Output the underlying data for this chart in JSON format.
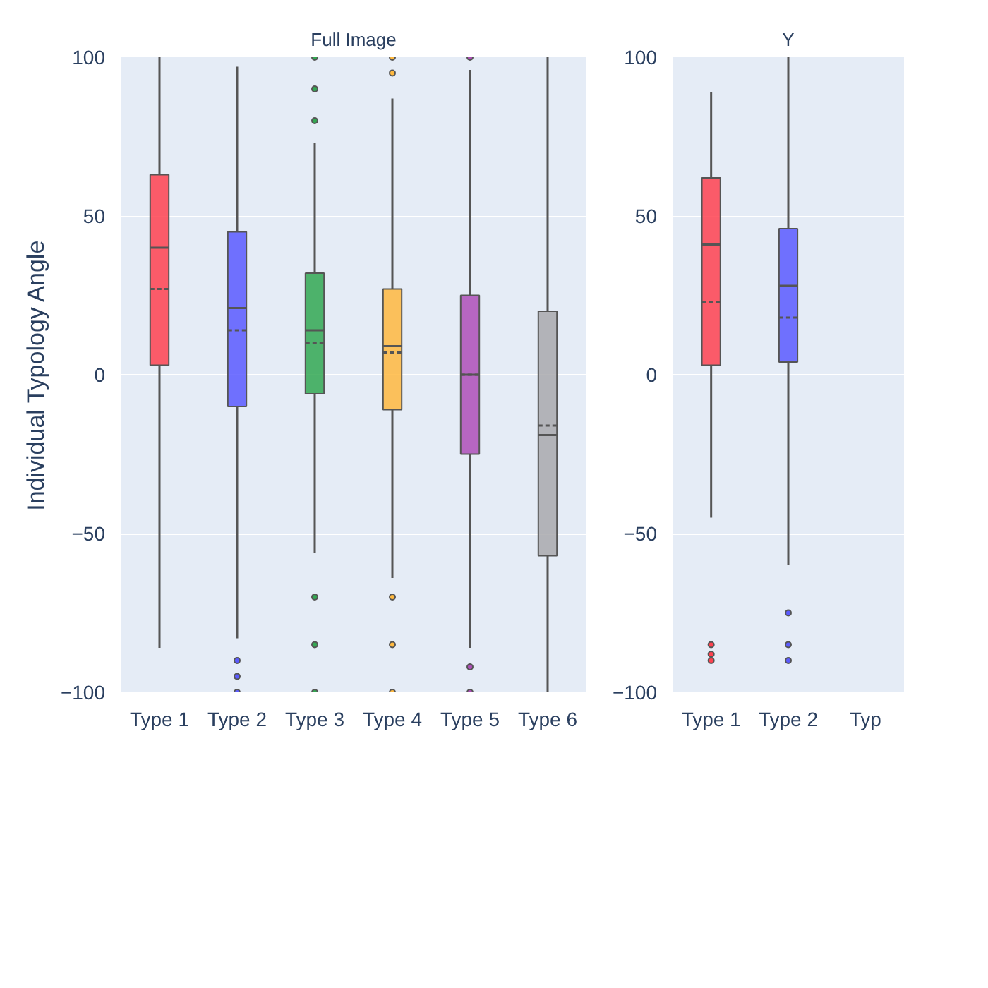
{
  "chart_data": [
    {
      "type": "box",
      "title": "Full Image",
      "ylabel": "Individual Typology Angle",
      "categories": [
        "Type 1",
        "Type 2",
        "Type 3",
        "Type 4",
        "Type 5",
        "Type 6"
      ],
      "colors": [
        "#ff4250",
        "#5b5bff",
        "#33a852",
        "#ffb93f",
        "#ae4fb8",
        "#a9a9ad"
      ],
      "ylim": [
        -100,
        100
      ],
      "yticks": [
        -100,
        -50,
        0,
        50,
        100
      ],
      "grid": "y",
      "boxes": [
        {
          "low": -86,
          "q1": 3,
          "median": 40,
          "q3": 63,
          "high": 100,
          "mean": 27
        },
        {
          "low": -83,
          "q1": -10,
          "median": 21,
          "q3": 45,
          "high": 97,
          "mean": 14,
          "outliers": [
            -90,
            -95,
            -100
          ]
        },
        {
          "low": -56,
          "q1": -6,
          "median": 14,
          "q3": 32,
          "high": 73,
          "mean": 10,
          "outliers": [
            80,
            90,
            100,
            -70,
            -85,
            -100
          ]
        },
        {
          "low": -64,
          "q1": -11,
          "median": 9,
          "q3": 27,
          "high": 87,
          "mean": 7,
          "outliers": [
            95,
            100,
            -70,
            -85,
            -100
          ]
        },
        {
          "low": -86,
          "q1": -25,
          "median": 0,
          "q3": 25,
          "high": 96,
          "mean": 0,
          "outliers": [
            100,
            -92,
            -100
          ]
        },
        {
          "low": -100,
          "q1": -57,
          "median": -19,
          "q3": 20,
          "high": 100,
          "mean": -16
        }
      ]
    },
    {
      "type": "box",
      "title": "Y",
      "categories": [
        "Type 1",
        "Type 2",
        "Typ"
      ],
      "colors": [
        "#ff4250",
        "#5b5bff",
        "#33a852"
      ],
      "ylim": [
        -100,
        100
      ],
      "yticks": [
        -100,
        -50,
        0,
        50,
        100
      ],
      "grid": "y",
      "boxes": [
        {
          "low": -45,
          "q1": 3,
          "median": 41,
          "q3": 62,
          "high": 89,
          "mean": 23,
          "outliers": [
            -85,
            -88,
            -90
          ]
        },
        {
          "low": -60,
          "q1": 4,
          "median": 28,
          "q3": 46,
          "high": 100,
          "mean": 18,
          "outliers": [
            -75,
            -85,
            -90
          ]
        },
        null
      ]
    }
  ]
}
